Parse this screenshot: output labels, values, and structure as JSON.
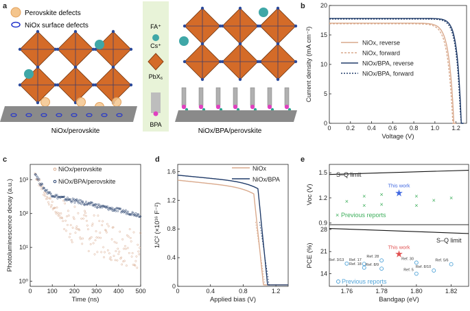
{
  "panel_labels": {
    "a": "a",
    "b": "b",
    "c": "c",
    "d": "d",
    "e": "e"
  },
  "schematic": {
    "legend_perovskite_defects": "Perovskite defects",
    "legend_niox_defects": "NiOx surface defects",
    "ion_fa": "FA⁺",
    "ion_cs": "Cs⁺",
    "ion_pbx": "PbX₆",
    "ion_bpa": "BPA",
    "caption_left": "NiOx/perovskite",
    "caption_right": "NiOx/BPA/perovskite"
  },
  "colors": {
    "niox": "#d9a98c",
    "bpa": "#1f3a68",
    "blue_pts": "#4fa3d8",
    "star_blue": "#4169e1",
    "star_red": "#e05050",
    "green": "#3cae5a"
  },
  "chart_data": [
    {
      "panel": "b",
      "type": "line",
      "xlabel": "Voltage (V)",
      "ylabel": "Current density (mA cm⁻²)",
      "xlim": [
        0,
        1.3
      ],
      "ylim": [
        0,
        20
      ],
      "xticks": [
        "0",
        "0.2",
        "0.4",
        "0.6",
        "0.8",
        "1.0",
        "1.2"
      ],
      "yticks": [
        "0",
        "5",
        "10",
        "15",
        "20"
      ],
      "series": [
        {
          "name": "NiOx, reverse",
          "jsc": 17.0,
          "voc": 1.18,
          "k": 22,
          "color": "#d9a98c",
          "dash": ""
        },
        {
          "name": "NiOx, forward",
          "jsc": 16.9,
          "voc": 1.17,
          "k": 21,
          "color": "#d9a98c",
          "dash": "3,2"
        },
        {
          "name": "NiOx/BPA, reverse",
          "jsc": 17.8,
          "voc": 1.25,
          "k": 26,
          "color": "#1f3a68",
          "dash": ""
        },
        {
          "name": "NiOx/BPA, forward",
          "jsc": 17.7,
          "voc": 1.245,
          "k": 25,
          "color": "#1f3a68",
          "dash": "2,2"
        }
      ]
    },
    {
      "panel": "c",
      "type": "scatter",
      "xlabel": "Time (ns)",
      "ylabel": "Photoluminescence decay (a.u.)",
      "xlim": [
        0,
        500
      ],
      "ylim_log10": [
        -0.15,
        3.45
      ],
      "xticks": [
        "0",
        "100",
        "200",
        "300",
        "400",
        "500"
      ],
      "yticks": [
        "10⁰",
        "10¹",
        "10²",
        "10³"
      ],
      "series": [
        {
          "name": "NiOx/perovskite",
          "tau1": 28,
          "tau2": 140,
          "a1": 1400,
          "a2": 140,
          "floor": 4,
          "color": "#d9a98c"
        },
        {
          "name": "NiOx/BPA/perovskite",
          "tau1": 22,
          "tau2": 310,
          "a1": 1200,
          "a2": 420,
          "floor": 0,
          "color": "#1f3a68"
        }
      ]
    },
    {
      "panel": "d",
      "type": "line",
      "xlabel": "Applied bias (V)",
      "ylabel": "1/C² (×10¹⁶ F⁻²)",
      "xlim": [
        0,
        1.35
      ],
      "ylim": [
        0,
        1.7
      ],
      "xticks": [
        "0",
        "0.4",
        "0.8",
        "1.2"
      ],
      "yticks": [
        "0",
        "0.4",
        "0.8",
        "1.2",
        "1.6"
      ],
      "series": [
        {
          "name": "NiOx",
          "y0": 1.48,
          "slope": 0.12,
          "vbi": 1.05,
          "color": "#d9a98c"
        },
        {
          "name": "NiOx/BPA",
          "y0": 1.55,
          "slope": 0.11,
          "vbi": 1.1,
          "color": "#1f3a68"
        }
      ]
    },
    {
      "panel": "e",
      "type": "scatter",
      "xlabel": "Bandgap (eV)",
      "xlim": [
        1.75,
        1.83
      ],
      "xticks": [
        "1.76",
        "1.78",
        "1.80",
        "1.82"
      ],
      "top": {
        "ylabel": "Voc (V)",
        "ylim": [
          0.88,
          1.6
        ],
        "yticks": [
          "0.9",
          "1.2",
          "1.5"
        ],
        "sq_limit": "S–Q limit",
        "sq_line": [
          [
            1.75,
            1.48
          ],
          [
            1.83,
            1.53
          ]
        ],
        "this_work_label": "This work",
        "this_work": [
          1.79,
          1.26
        ],
        "previous_label": "Previous reports",
        "previous": [
          [
            1.76,
            1.16
          ],
          [
            1.77,
            1.22
          ],
          [
            1.77,
            1.11
          ],
          [
            1.78,
            1.24
          ],
          [
            1.78,
            1.12
          ],
          [
            1.8,
            1.22
          ],
          [
            1.8,
            1.11
          ],
          [
            1.81,
            1.17
          ],
          [
            1.82,
            1.2
          ]
        ]
      },
      "bottom": {
        "ylabel": "PCE (%)",
        "ylim": [
          10,
          29.5
        ],
        "yticks": [
          "14",
          "21",
          "28"
        ],
        "sq_limit": "S–Q limit",
        "sq_line": [
          [
            1.75,
            28.3
          ],
          [
            1.83,
            26.7
          ]
        ],
        "this_work_label": "This work",
        "this_work": [
          1.79,
          20.3
        ],
        "previous_label": "Previous reports",
        "previous": [
          [
            1.76,
            17.2,
            "Ref. 3/13"
          ],
          [
            1.77,
            17.1,
            "Ref. 17"
          ],
          [
            1.77,
            15.9,
            "Ref. 18"
          ],
          [
            1.78,
            18.2,
            "Ref. 28"
          ],
          [
            1.78,
            15.6,
            "Ref. 8/9"
          ],
          [
            1.8,
            17.5,
            "Ref. 30"
          ],
          [
            1.8,
            14.0,
            "Ref. 5"
          ],
          [
            1.81,
            15.0,
            "Ref. 8/10"
          ],
          [
            1.82,
            17.0,
            "Ref. 5/6"
          ]
        ]
      }
    }
  ]
}
